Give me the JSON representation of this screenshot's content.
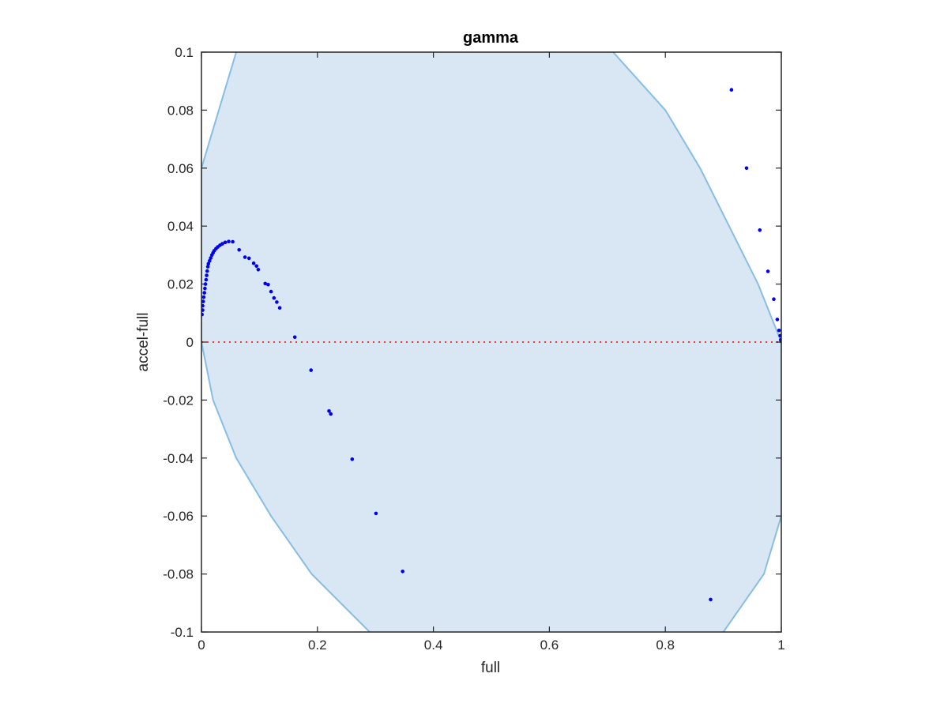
{
  "chart_data": {
    "type": "scatter",
    "title": "gamma",
    "xlabel": "full",
    "ylabel": "accel-full",
    "xlim": [
      0,
      1
    ],
    "ylim": [
      -0.1,
      0.1
    ],
    "x_ticks": [
      0,
      0.2,
      0.4,
      0.6,
      0.8,
      1
    ],
    "x_tick_labels": [
      "0",
      "0.2",
      "0.4",
      "0.6",
      "0.8",
      "1"
    ],
    "y_ticks": [
      -0.1,
      -0.08,
      -0.06,
      -0.04,
      -0.02,
      0,
      0.02,
      0.04,
      0.06,
      0.08,
      0.1
    ],
    "y_tick_labels": [
      "-0.1",
      "-0.08",
      "-0.06",
      "-0.04",
      "-0.02",
      "0",
      "0.02",
      "0.04",
      "0.06",
      "0.08",
      "0.1"
    ],
    "grid": false,
    "colors": {
      "points": "#0000ee",
      "region_fill": "#d8e7f3",
      "region_edge": "#88bde3",
      "zero_line": "#ff3333",
      "axes": "#262626"
    },
    "region": {
      "description_free": true,
      "left_boundary": [
        [
          0.06,
          0.1
        ],
        [
          0.0,
          0.06
        ],
        [
          0.0,
          0.0
        ],
        [
          0.02,
          -0.02
        ],
        [
          0.06,
          -0.04
        ],
        [
          0.12,
          -0.06
        ],
        [
          0.19,
          -0.08
        ],
        [
          0.29,
          -0.1
        ]
      ],
      "right_boundary": [
        [
          0.71,
          0.1
        ],
        [
          0.8,
          0.08
        ],
        [
          0.86,
          0.06
        ],
        [
          0.91,
          0.04
        ],
        [
          0.96,
          0.02
        ],
        [
          1.0,
          0.0
        ],
        [
          1.0,
          -0.06
        ],
        [
          0.97,
          -0.08
        ],
        [
          0.9,
          -0.1
        ]
      ]
    },
    "zero_line_y": 0,
    "series": [
      {
        "points": [
          [
            0.001,
            0.0095
          ],
          [
            0.002,
            0.011
          ],
          [
            0.002,
            0.0125
          ],
          [
            0.003,
            0.014
          ],
          [
            0.004,
            0.0155
          ],
          [
            0.005,
            0.017
          ],
          [
            0.006,
            0.0185
          ],
          [
            0.007,
            0.02
          ],
          [
            0.008,
            0.0215
          ],
          [
            0.009,
            0.023
          ],
          [
            0.01,
            0.0245
          ],
          [
            0.011,
            0.026
          ],
          [
            0.012,
            0.027
          ],
          [
            0.014,
            0.028
          ],
          [
            0.016,
            0.029
          ],
          [
            0.018,
            0.03
          ],
          [
            0.02,
            0.0308
          ],
          [
            0.022,
            0.0315
          ],
          [
            0.025,
            0.0322
          ],
          [
            0.028,
            0.0328
          ],
          [
            0.032,
            0.0334
          ],
          [
            0.036,
            0.0339
          ],
          [
            0.041,
            0.0344
          ],
          [
            0.047,
            0.0347
          ],
          [
            0.054,
            0.0346
          ],
          [
            0.065,
            0.0318
          ],
          [
            0.075,
            0.0293
          ],
          [
            0.082,
            0.0289
          ],
          [
            0.09,
            0.0272
          ],
          [
            0.095,
            0.0262
          ],
          [
            0.098,
            0.025
          ],
          [
            0.11,
            0.0202
          ],
          [
            0.115,
            0.0198
          ],
          [
            0.12,
            0.0174
          ],
          [
            0.125,
            0.0152
          ],
          [
            0.13,
            0.0138
          ],
          [
            0.135,
            0.0118
          ],
          [
            0.161,
            0.0017
          ],
          [
            0.189,
            -0.0097
          ],
          [
            0.22,
            -0.0238
          ],
          [
            0.223,
            -0.0248
          ],
          [
            0.26,
            -0.0404
          ],
          [
            0.301,
            -0.0591
          ],
          [
            0.347,
            -0.0791
          ],
          [
            0.878,
            -0.0888
          ],
          [
            0.914,
            0.087
          ],
          [
            0.94,
            0.06
          ],
          [
            0.963,
            0.0386
          ],
          [
            0.977,
            0.0244
          ],
          [
            0.987,
            0.0148
          ],
          [
            0.993,
            0.0078
          ],
          [
            0.996,
            0.004
          ],
          [
            0.998,
            0.0022
          ],
          [
            0.999,
            0.0008
          ],
          [
            1.0,
            0.0002
          ]
        ]
      }
    ]
  }
}
